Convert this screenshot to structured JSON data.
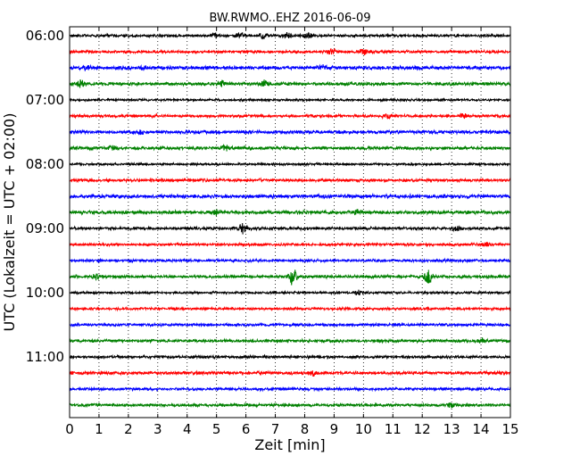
{
  "chart_data": {
    "type": "line",
    "title": "BW.RWMO..EHZ 2016-06-09",
    "xlabel": "Zeit  [min]",
    "ylabel": "UTC (Lokalzeit = UTC + 02:00)",
    "xlim": [
      0,
      15
    ],
    "x_ticks": [
      "0",
      "1",
      "2",
      "3",
      "4",
      "5",
      "6",
      "7",
      "8",
      "9",
      "10",
      "11",
      "12",
      "13",
      "14",
      "15"
    ],
    "y_tick_labels": [
      "06:00",
      "07:00",
      "08:00",
      "09:00",
      "10:00",
      "11:00"
    ],
    "grid": "vertical dotted",
    "colors": [
      "#000000",
      "#ff0000",
      "#0000ff",
      "#008000"
    ],
    "series": [
      {
        "start": "06:00",
        "color": "#000000",
        "amp": 1.2,
        "events": [
          {
            "t": 4.9,
            "a": 2.5
          },
          {
            "t": 5.8,
            "a": 3
          },
          {
            "t": 6.6,
            "a": 3
          },
          {
            "t": 7.4,
            "a": 3.5
          },
          {
            "t": 8.1,
            "a": 3
          }
        ]
      },
      {
        "start": "06:15",
        "color": "#ff0000",
        "amp": 1.2,
        "events": [
          {
            "t": 8.9,
            "a": 3
          },
          {
            "t": 10.0,
            "a": 2.5
          }
        ]
      },
      {
        "start": "06:30",
        "color": "#0000ff",
        "amp": 1.6,
        "events": [
          {
            "t": 0.6,
            "a": 2.5
          },
          {
            "t": 2.5,
            "a": 2.5
          },
          {
            "t": 8.6,
            "a": 2
          }
        ]
      },
      {
        "start": "06:45",
        "color": "#008000",
        "amp": 1.4,
        "events": [
          {
            "t": 0.4,
            "a": 3.5
          },
          {
            "t": 5.2,
            "a": 3
          },
          {
            "t": 6.6,
            "a": 3
          }
        ]
      },
      {
        "start": "07:00",
        "color": "#000000",
        "amp": 1.0,
        "events": []
      },
      {
        "start": "07:15",
        "color": "#ff0000",
        "amp": 1.2,
        "events": [
          {
            "t": 10.8,
            "a": 2.5
          },
          {
            "t": 13.4,
            "a": 2
          }
        ]
      },
      {
        "start": "07:30",
        "color": "#0000ff",
        "amp": 1.5,
        "events": [
          {
            "t": 2.5,
            "a": 2
          }
        ]
      },
      {
        "start": "07:45",
        "color": "#008000",
        "amp": 1.4,
        "events": [
          {
            "t": 1.5,
            "a": 2.5
          },
          {
            "t": 5.3,
            "a": 2.5
          }
        ]
      },
      {
        "start": "08:00",
        "color": "#000000",
        "amp": 1.0,
        "events": []
      },
      {
        "start": "08:15",
        "color": "#ff0000",
        "amp": 1.3,
        "events": []
      },
      {
        "start": "08:30",
        "color": "#0000ff",
        "amp": 1.6,
        "events": []
      },
      {
        "start": "08:45",
        "color": "#008000",
        "amp": 1.5,
        "events": [
          {
            "t": 5.0,
            "a": 2.5
          },
          {
            "t": 9.8,
            "a": 2.5
          }
        ]
      },
      {
        "start": "09:00",
        "color": "#000000",
        "amp": 1.3,
        "events": [
          {
            "t": 5.9,
            "a": 6
          },
          {
            "t": 13.2,
            "a": 2.5
          }
        ]
      },
      {
        "start": "09:15",
        "color": "#ff0000",
        "amp": 1.2,
        "events": [
          {
            "t": 14.2,
            "a": 2.5
          }
        ]
      },
      {
        "start": "09:30",
        "color": "#0000ff",
        "amp": 1.2,
        "events": []
      },
      {
        "start": "09:45",
        "color": "#008000",
        "amp": 1.3,
        "events": [
          {
            "t": 7.6,
            "a": 9
          },
          {
            "t": 12.2,
            "a": 8
          },
          {
            "t": 0.9,
            "a": 2.5
          }
        ]
      },
      {
        "start": "10:00",
        "color": "#000000",
        "amp": 1.0,
        "events": [
          {
            "t": 9.8,
            "a": 2
          }
        ]
      },
      {
        "start": "10:15",
        "color": "#ff0000",
        "amp": 1.1,
        "events": []
      },
      {
        "start": "10:30",
        "color": "#0000ff",
        "amp": 1.2,
        "events": []
      },
      {
        "start": "10:45",
        "color": "#008000",
        "amp": 1.3,
        "events": [
          {
            "t": 14.0,
            "a": 2.5
          }
        ]
      },
      {
        "start": "11:00",
        "color": "#000000",
        "amp": 1.2,
        "events": []
      },
      {
        "start": "11:15",
        "color": "#ff0000",
        "amp": 1.4,
        "events": [
          {
            "t": 8.3,
            "a": 2.5
          }
        ]
      },
      {
        "start": "11:30",
        "color": "#0000ff",
        "amp": 1.2,
        "events": []
      },
      {
        "start": "11:45",
        "color": "#008000",
        "amp": 1.3,
        "events": [
          {
            "t": 13.0,
            "a": 2
          }
        ]
      }
    ]
  }
}
